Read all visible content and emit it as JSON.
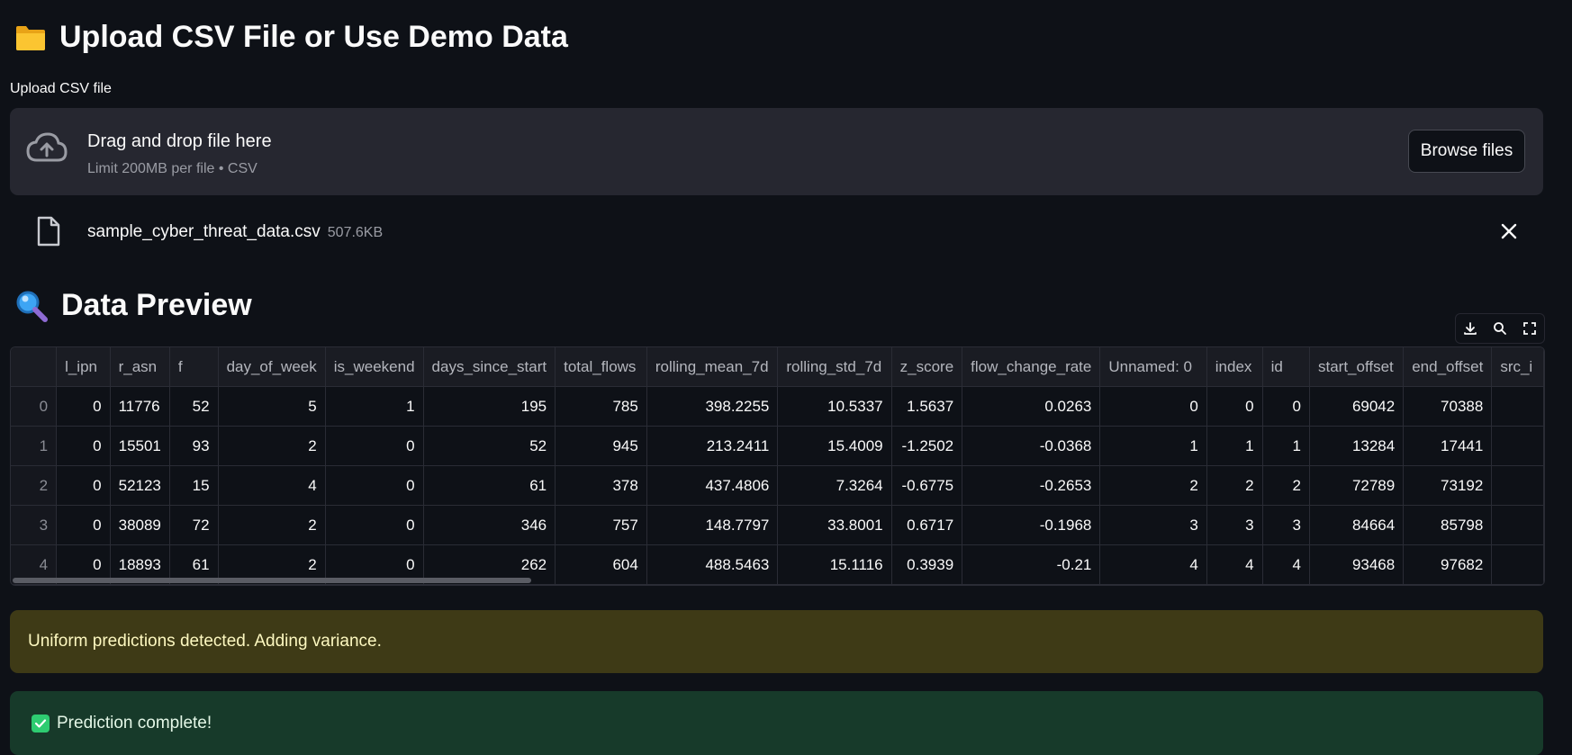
{
  "upload_section": {
    "title": "Upload CSV File or Use Demo Data",
    "title_icon": "folder-icon",
    "uploader_label": "Upload CSV file",
    "dropzone_title": "Drag and drop file here",
    "dropzone_subtitle": "Limit 200MB per file • CSV",
    "browse_label": "Browse files",
    "file_name": "sample_cyber_threat_data.csv",
    "file_size": "507.6KB"
  },
  "preview_section": {
    "title": "Data Preview",
    "title_icon": "magnifier-icon",
    "columns": [
      "",
      "l_ipn",
      "r_asn",
      "f",
      "day_of_week",
      "is_weekend",
      "days_since_start",
      "total_flows",
      "rolling_mean_7d",
      "rolling_std_7d",
      "z_score",
      "flow_change_rate",
      "Unnamed: 0",
      "index",
      "id",
      "start_offset",
      "end_offset",
      "src_i"
    ],
    "rows": [
      [
        "0",
        "0",
        "11776",
        "52",
        "5",
        "1",
        "195",
        "785",
        "398.2255",
        "10.5337",
        "1.5637",
        "0.0263",
        "0",
        "0",
        "0",
        "69042",
        "70388",
        ""
      ],
      [
        "1",
        "0",
        "15501",
        "93",
        "2",
        "0",
        "52",
        "945",
        "213.2411",
        "15.4009",
        "-1.2502",
        "-0.0368",
        "1",
        "1",
        "1",
        "13284",
        "17441",
        ""
      ],
      [
        "2",
        "0",
        "52123",
        "15",
        "4",
        "0",
        "61",
        "378",
        "437.4806",
        "7.3264",
        "-0.6775",
        "-0.2653",
        "2",
        "2",
        "2",
        "72789",
        "73192",
        ""
      ],
      [
        "3",
        "0",
        "38089",
        "72",
        "2",
        "0",
        "346",
        "757",
        "148.7797",
        "33.8001",
        "0.6717",
        "-0.1968",
        "3",
        "3",
        "3",
        "84664",
        "85798",
        ""
      ],
      [
        "4",
        "0",
        "18893",
        "61",
        "2",
        "0",
        "262",
        "604",
        "488.5463",
        "15.1116",
        "0.3939",
        "-0.21",
        "4",
        "4",
        "4",
        "93468",
        "97682",
        ""
      ]
    ]
  },
  "alerts": {
    "warning": "Uniform predictions detected. Adding variance.",
    "success": "Prediction complete!"
  },
  "colors": {
    "background": "#0e1117",
    "dropzone": "#262730",
    "warning_bg": "#3e3a16",
    "success_bg": "#173a2a"
  }
}
